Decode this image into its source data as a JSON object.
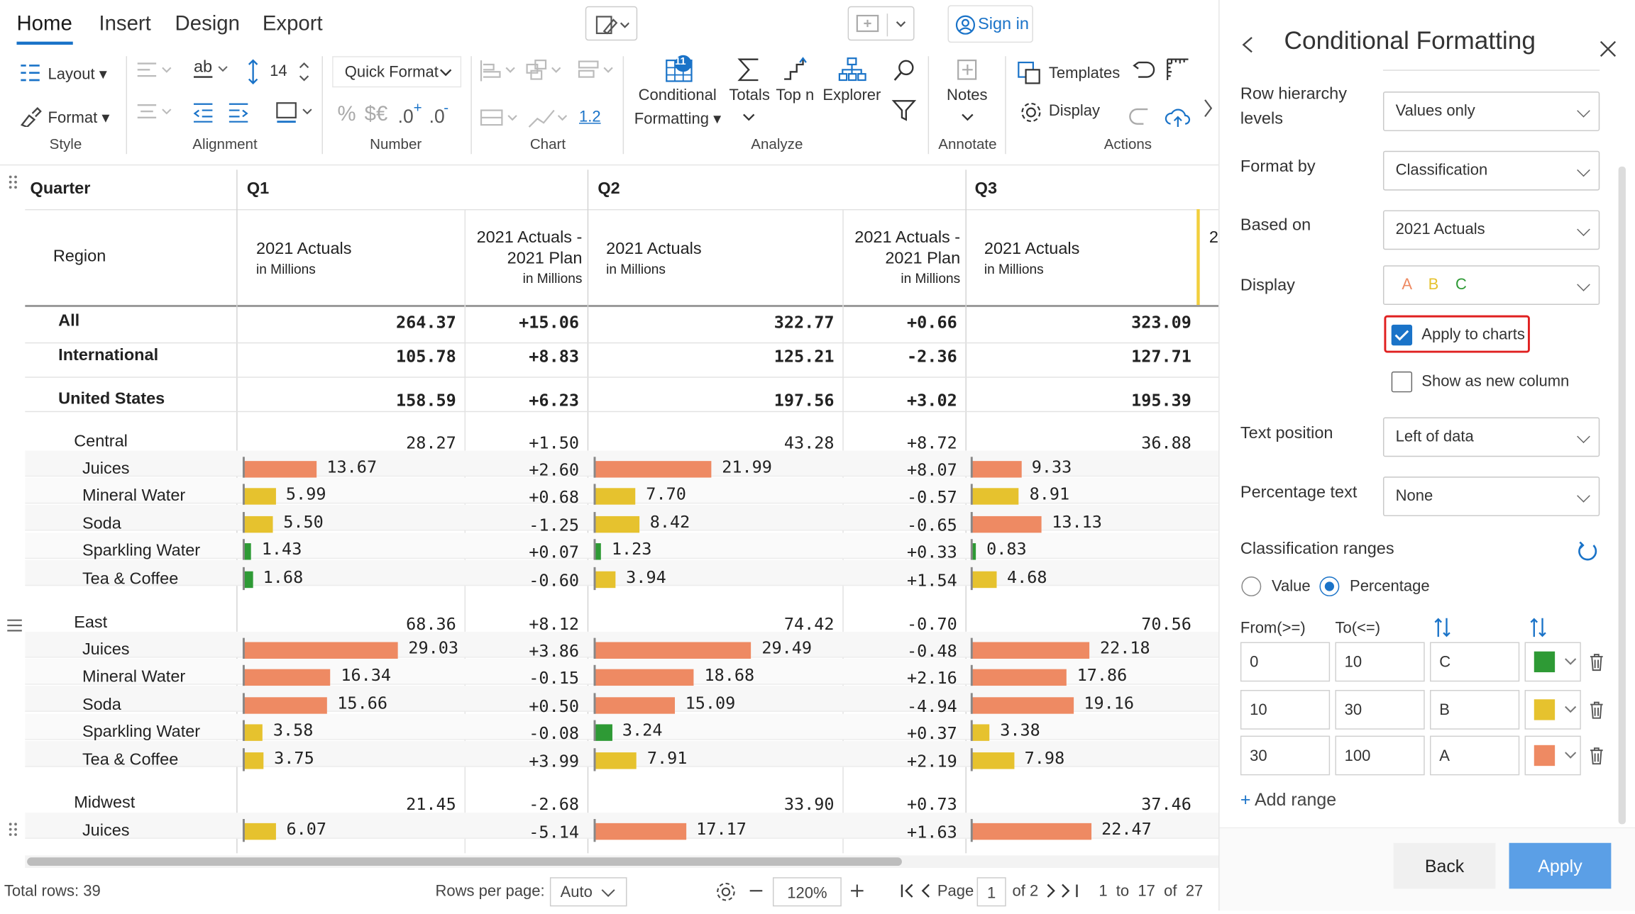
{
  "tabs": [
    "Home",
    "Insert",
    "Design",
    "Export"
  ],
  "sign_in": "Sign in",
  "ribbon": {
    "layout": "Layout",
    "format": "Format",
    "style_group": "Style",
    "alignment_group": "Alignment",
    "font_size": "14",
    "quick_format": "Quick Format",
    "number_group": "Number",
    "decimal_value": "1.2",
    "chart_group": "Chart",
    "conditional_formatting_line1": "Conditional",
    "conditional_formatting_line2": "Formatting",
    "cf_badge": "11",
    "totals": "Totals",
    "topn": "Top n",
    "explorer": "Explorer",
    "analyze_group": "Analyze",
    "notes": "Notes",
    "annotate_group": "Annotate",
    "templates": "Templates",
    "display": "Display",
    "actions_group": "Actions"
  },
  "table": {
    "quarter_header": "Quarter",
    "region_header": "Region",
    "quarters": [
      "Q1",
      "Q2",
      "Q3"
    ],
    "col_actuals": "2021 Actuals",
    "col_diff_line1": "2021 Actuals -",
    "col_diff_line2": "2021 Plan",
    "col_unit": "in Millions",
    "overflow_col": "2",
    "rows": [
      {
        "label": "All",
        "level": 0,
        "bold": true,
        "bar": false,
        "q1": "264.37",
        "d1": "+15.06",
        "q2": "322.77",
        "d2": "+0.66",
        "q3": "323.09"
      },
      {
        "label": "International",
        "level": 0,
        "bold": true,
        "bar": false,
        "q1": "105.78",
        "d1": "+8.83",
        "q2": "125.21",
        "d2": "-2.36",
        "q3": "127.71"
      },
      {
        "label": "United States",
        "level": 0,
        "bold": true,
        "bar": false,
        "q1": "158.59",
        "d1": "+6.23",
        "q2": "197.56",
        "d2": "+3.02",
        "q3": "195.39"
      },
      {
        "label": "Central",
        "level": 1,
        "bold": false,
        "bar": false,
        "q1": "28.27",
        "d1": "+1.50",
        "q2": "43.28",
        "d2": "+8.72",
        "q3": "36.88"
      },
      {
        "label": "Juices",
        "level": 2,
        "bold": false,
        "bar": true,
        "q1": "13.67",
        "c1": "A",
        "d1": "+2.60",
        "q2": "21.99",
        "c2": "A",
        "d2": "+8.07",
        "q3": "9.33",
        "c3": "A"
      },
      {
        "label": "Mineral Water",
        "level": 2,
        "bold": false,
        "bar": true,
        "q1": "5.99",
        "c1": "B",
        "d1": "+0.68",
        "q2": "7.70",
        "c2": "B",
        "d2": "-0.57",
        "q3": "8.91",
        "c3": "B"
      },
      {
        "label": "Soda",
        "level": 2,
        "bold": false,
        "bar": true,
        "q1": "5.50",
        "c1": "B",
        "d1": "-1.25",
        "q2": "8.42",
        "c2": "B",
        "d2": "-0.65",
        "q3": "13.13",
        "c3": "A"
      },
      {
        "label": "Sparkling Water",
        "level": 2,
        "bold": false,
        "bar": true,
        "q1": "1.43",
        "c1": "C",
        "d1": "+0.07",
        "q2": "1.23",
        "c2": "C",
        "d2": "+0.33",
        "q3": "0.83",
        "c3": "C"
      },
      {
        "label": "Tea & Coffee",
        "level": 2,
        "bold": false,
        "bar": true,
        "q1": "1.68",
        "c1": "C",
        "d1": "-0.60",
        "q2": "3.94",
        "c2": "B",
        "d2": "+1.54",
        "q3": "4.68",
        "c3": "B"
      },
      {
        "label": "East",
        "level": 1,
        "bold": false,
        "bar": false,
        "q1": "68.36",
        "d1": "+8.12",
        "q2": "74.42",
        "d2": "-0.70",
        "q3": "70.56"
      },
      {
        "label": "Juices",
        "level": 2,
        "bold": false,
        "bar": true,
        "q1": "29.03",
        "c1": "A",
        "d1": "+3.86",
        "q2": "29.49",
        "c2": "A",
        "d2": "-0.48",
        "q3": "22.18",
        "c3": "A"
      },
      {
        "label": "Mineral Water",
        "level": 2,
        "bold": false,
        "bar": true,
        "q1": "16.34",
        "c1": "A",
        "d1": "-0.15",
        "q2": "18.68",
        "c2": "A",
        "d2": "+2.16",
        "q3": "17.86",
        "c3": "A"
      },
      {
        "label": "Soda",
        "level": 2,
        "bold": false,
        "bar": true,
        "q1": "15.66",
        "c1": "A",
        "d1": "+0.50",
        "q2": "15.09",
        "c2": "A",
        "d2": "-4.94",
        "q3": "19.16",
        "c3": "A"
      },
      {
        "label": "Sparkling Water",
        "level": 2,
        "bold": false,
        "bar": true,
        "q1": "3.58",
        "c1": "B",
        "d1": "-0.08",
        "q2": "3.24",
        "c2": "C",
        "d2": "+0.37",
        "q3": "3.38",
        "c3": "B"
      },
      {
        "label": "Tea & Coffee",
        "level": 2,
        "bold": false,
        "bar": true,
        "q1": "3.75",
        "c1": "B",
        "d1": "+3.99",
        "q2": "7.91",
        "c2": "B",
        "d2": "+2.19",
        "q3": "7.98",
        "c3": "B"
      },
      {
        "label": "Midwest",
        "level": 1,
        "bold": false,
        "bar": false,
        "q1": "21.45",
        "d1": "-2.68",
        "q2": "33.90",
        "d2": "+0.73",
        "q3": "37.46"
      },
      {
        "label": "Juices",
        "level": 2,
        "bold": false,
        "bar": true,
        "q1": "6.07",
        "c1": "B",
        "d1": "-5.14",
        "q2": "17.17",
        "c2": "A",
        "d2": "+1.63",
        "q3": "22.47",
        "c3": "A"
      }
    ]
  },
  "footer": {
    "total_rows": "Total rows: 39",
    "rows_per_page_label": "Rows per page:",
    "rows_per_page_value": "Auto",
    "zoom": "120%",
    "page_label": "Page",
    "page_value": "1",
    "page_of": "of 2",
    "range_text": "1  to  17  of  27"
  },
  "panel": {
    "title": "Conditional Formatting",
    "row_hierarchy_label_1": "Row hierarchy",
    "row_hierarchy_label_2": "levels",
    "row_hierarchy_value": "Values only",
    "format_by_label": "Format by",
    "format_by_value": "Classification",
    "based_on_label": "Based on",
    "based_on_value": "2021 Actuals",
    "display_label": "Display",
    "display_value": [
      "A",
      "B",
      "C"
    ],
    "apply_to_charts": "Apply to charts",
    "show_as_new_column": "Show as new column",
    "text_position_label": "Text position",
    "text_position_value": "Left of data",
    "percentage_text_label": "Percentage text",
    "percentage_text_value": "None",
    "ranges_title": "Classification ranges",
    "radio_value": "Value",
    "radio_percentage": "Percentage",
    "from_header": "From(>=)",
    "to_header": "To(<=)",
    "ranges": [
      {
        "from": "0",
        "to": "10",
        "cls": "C",
        "color": "#2e9a35"
      },
      {
        "from": "10",
        "to": "30",
        "cls": "B",
        "color": "#e6c22e"
      },
      {
        "from": "30",
        "to": "100",
        "cls": "A",
        "color": "#ee8a63"
      }
    ],
    "add_range": "Add range",
    "back": "Back",
    "apply": "Apply"
  },
  "colors": {
    "A": "#ee8a63",
    "B": "#e6c22e",
    "C": "#2e9a35",
    "accent": "#1a73c8",
    "apply_bg": "#5b9fe6"
  }
}
